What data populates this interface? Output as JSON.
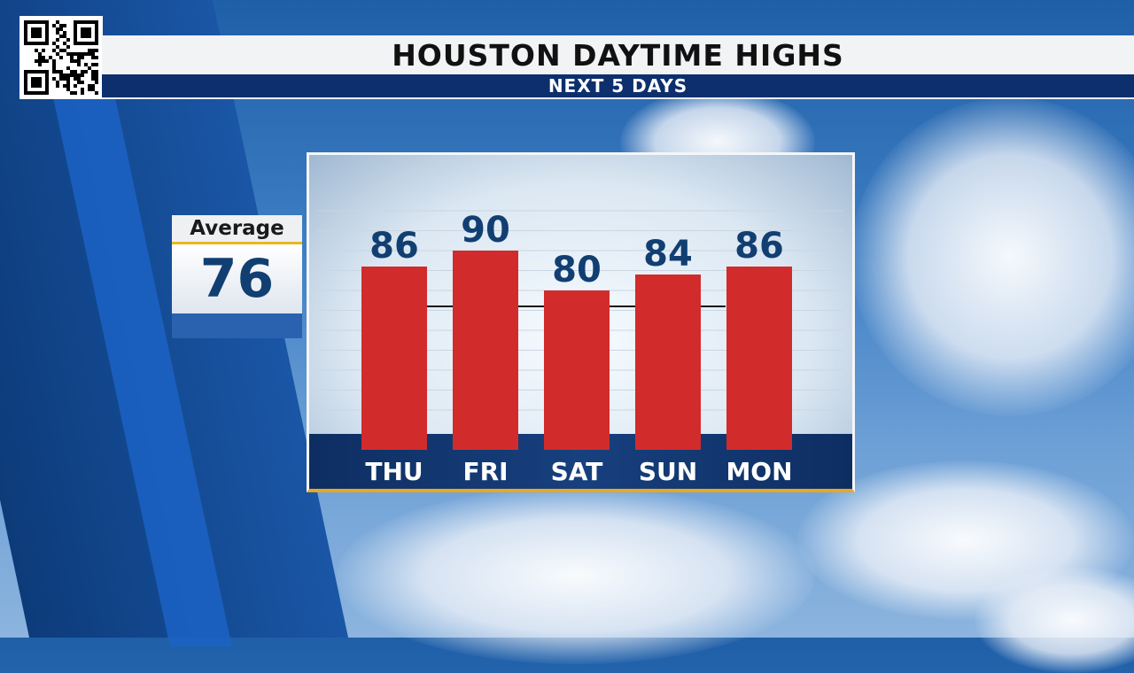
{
  "header": {
    "title": "HOUSTON DAYTIME HIGHS",
    "subtitle": "NEXT 5 DAYS"
  },
  "average": {
    "label": "Average",
    "value": "76"
  },
  "colors": {
    "bar": "#d22b2b",
    "value_text": "#123f72",
    "day_text": "#ffffff",
    "average_line": "#111111"
  },
  "chart_data": {
    "type": "bar",
    "categories": [
      "THU",
      "FRI",
      "SAT",
      "SUN",
      "MON"
    ],
    "values": [
      86,
      90,
      80,
      84,
      86
    ],
    "reference_line": {
      "value": 76
    },
    "ylim": [
      40,
      100
    ],
    "grid": true,
    "title": "",
    "xlabel": "",
    "ylabel": ""
  }
}
